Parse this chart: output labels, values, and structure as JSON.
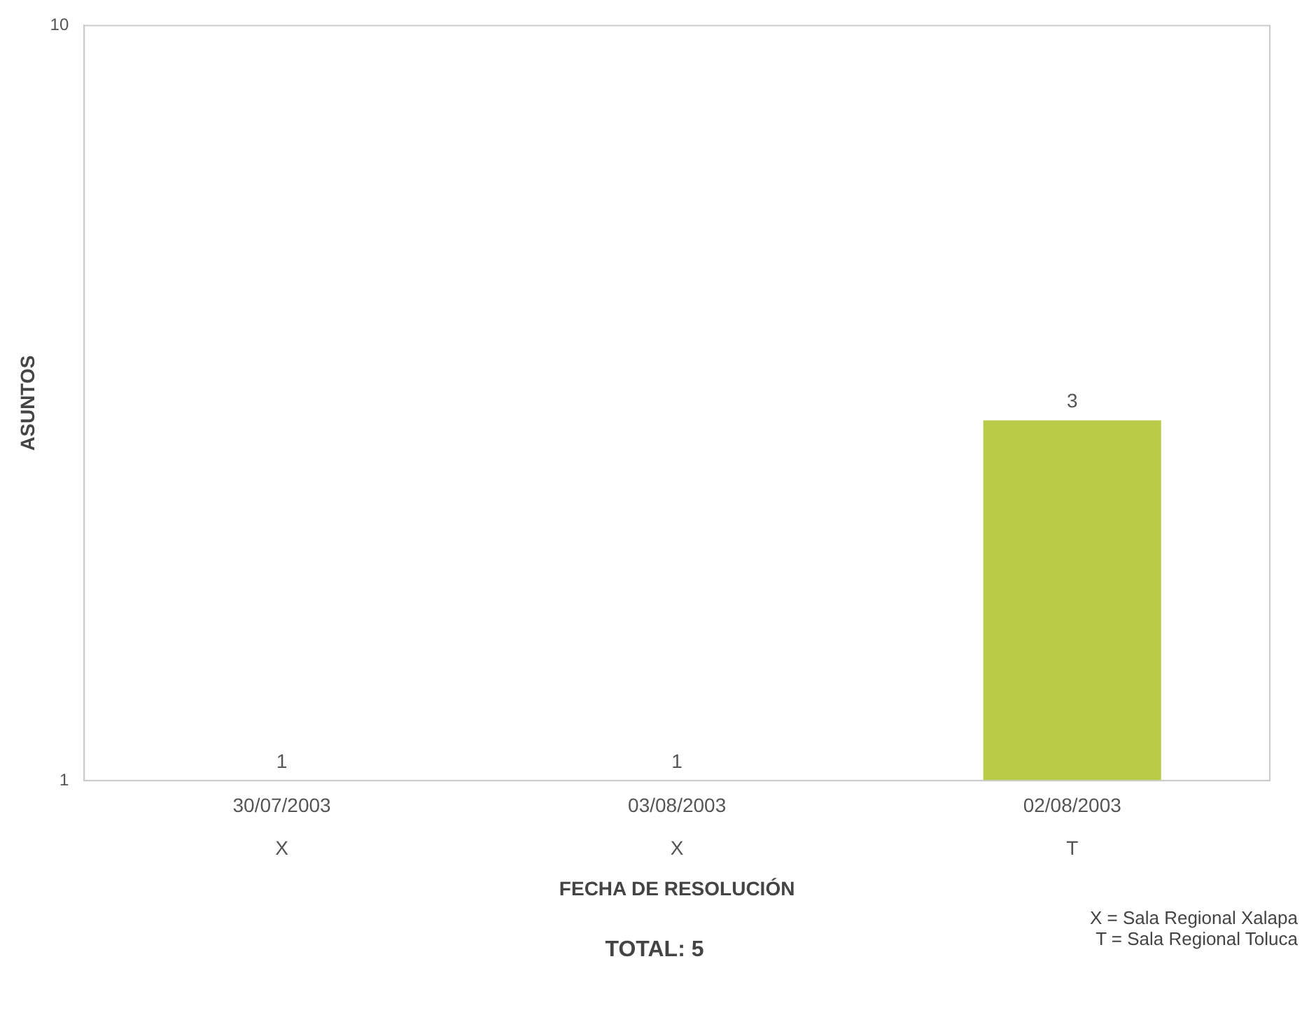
{
  "chart_data": {
    "type": "bar",
    "xlabel": "FECHA DE RESOLUCIÓN",
    "ylabel": "ASUNTOS",
    "categories": [
      "30/07/2003\nX",
      "03/08/2003\nX",
      "02/08/2003\nT"
    ],
    "values": [
      1,
      1,
      3
    ],
    "colors": [
      "#d4c12e",
      "#6ab64a",
      "#b9cc47"
    ],
    "log": "y",
    "ylim": [
      1,
      10
    ],
    "yticks": [
      1,
      10
    ],
    "grid": false,
    "legend": false,
    "data_labels": true,
    "annotations": [
      "TOTAL: 5",
      "X = Sala Regional Xalapa\nT = Sala Regional Toluca"
    ]
  }
}
